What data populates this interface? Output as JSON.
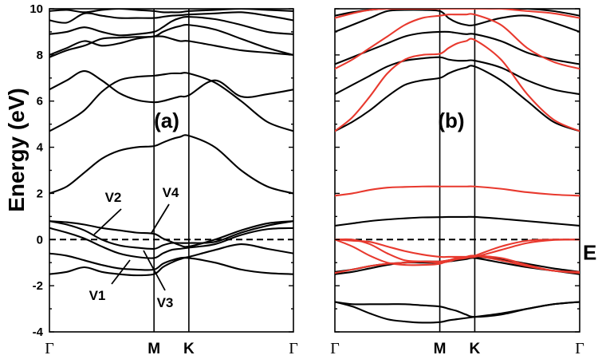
{
  "chart_data": [
    {
      "type": "line",
      "panel_label": "(a)",
      "ylabel": "Energy (eV)",
      "ylim": [
        -4,
        10
      ],
      "yticks": [
        "-4",
        "-2",
        "0",
        "2",
        "4",
        "6",
        "8",
        "10"
      ],
      "xticks": [
        "Γ",
        "M",
        "K",
        "Γ"
      ],
      "x": [
        0,
        0.1667,
        0.3333,
        0.5,
        0.6667,
        0.8333,
        1.0,
        1.0833,
        1.1667,
        1.25,
        1.3333,
        1.5833,
        1.8333,
        2.0833,
        2.3333
      ],
      "fermi_level": 0,
      "annotations": [
        "V1",
        "V2",
        "V3",
        "V4"
      ],
      "series": [
        {
          "color": "#000000",
          "values": [
            -1.5,
            -1.4,
            -1.2,
            -1.4,
            -1.5,
            -1.55,
            -1.5,
            -1.2,
            -1.0,
            -0.85,
            -0.8,
            -1.0,
            -1.3,
            -1.45,
            -1.5
          ]
        },
        {
          "color": "#000000",
          "values": [
            -0.6,
            -0.7,
            -0.9,
            -1.1,
            -1.25,
            -1.3,
            -1.3,
            -1.05,
            -0.9,
            -0.8,
            -0.75,
            -0.45,
            -0.2,
            -0.4,
            -0.6
          ]
        },
        {
          "color": "#000000",
          "values": [
            0.5,
            0.3,
            0.05,
            -0.3,
            -0.6,
            -0.75,
            -0.8,
            -0.6,
            -0.45,
            -0.4,
            -0.35,
            -0.2,
            0.2,
            0.45,
            0.5
          ]
        },
        {
          "color": "#000000",
          "values": [
            0.8,
            0.65,
            0.4,
            0.0,
            -0.25,
            -0.35,
            -0.4,
            -0.25,
            -0.15,
            -0.15,
            -0.15,
            -0.1,
            0.3,
            0.6,
            0.8
          ]
        },
        {
          "color": "#000000",
          "values": [
            0.8,
            0.75,
            0.65,
            0.5,
            0.4,
            0.3,
            0.25,
            0.05,
            -0.1,
            -0.25,
            -0.3,
            0.0,
            0.4,
            0.7,
            0.8
          ]
        },
        {
          "color": "#000000",
          "values": [
            2.0,
            2.3,
            2.9,
            3.5,
            3.85,
            4.0,
            4.05,
            4.2,
            4.35,
            4.45,
            4.5,
            4.0,
            3.0,
            2.3,
            2.0
          ]
        },
        {
          "color": "#000000",
          "values": [
            4.7,
            5.1,
            5.6,
            6.4,
            6.9,
            7.05,
            7.1,
            7.15,
            7.2,
            7.2,
            7.2,
            6.8,
            6.0,
            5.1,
            4.7
          ]
        },
        {
          "color": "#000000",
          "values": [
            6.5,
            6.9,
            7.3,
            6.9,
            6.35,
            6.05,
            5.95,
            6.0,
            6.1,
            6.2,
            6.25,
            6.9,
            6.2,
            6.3,
            6.5
          ]
        },
        {
          "color": "#000000",
          "values": [
            7.9,
            8.2,
            8.4,
            8.7,
            8.75,
            8.78,
            8.8,
            9.0,
            9.15,
            9.25,
            9.3,
            9.1,
            8.7,
            8.3,
            8.0
          ]
        },
        {
          "color": "#000000",
          "values": [
            8.0,
            8.3,
            8.6,
            8.4,
            8.5,
            8.7,
            8.8,
            8.8,
            8.7,
            8.6,
            8.6,
            8.4,
            8.2,
            8.1,
            8.0
          ]
        },
        {
          "color": "#000000",
          "values": [
            8.9,
            9.0,
            9.2,
            9.0,
            8.85,
            8.9,
            9.0,
            9.2,
            9.45,
            9.6,
            9.65,
            9.55,
            9.3,
            9.0,
            8.9
          ]
        },
        {
          "color": "#000000",
          "values": [
            9.5,
            9.4,
            9.8,
            9.7,
            9.6,
            9.6,
            9.6,
            9.65,
            9.7,
            9.72,
            9.75,
            9.8,
            9.85,
            9.7,
            9.5
          ]
        },
        {
          "color": "#000000",
          "values": [
            9.9,
            9.95,
            9.85,
            9.95,
            10.0,
            9.95,
            9.9,
            9.85,
            9.85,
            9.85,
            9.9,
            9.95,
            10.0,
            9.95,
            9.9
          ]
        }
      ]
    },
    {
      "type": "line",
      "panel_label": "(b)",
      "ylim": [
        -4,
        10
      ],
      "xticks": [
        "Γ",
        "M",
        "K",
        "Γ"
      ],
      "x": [
        0,
        0.1667,
        0.3333,
        0.5,
        0.6667,
        0.8333,
        1.0,
        1.0833,
        1.1667,
        1.25,
        1.3333,
        1.5833,
        1.8333,
        2.0833,
        2.3333
      ],
      "fermi_level": 0,
      "fermi_label": "E",
      "series": [
        {
          "color": "#000000",
          "values": [
            -2.7,
            -2.9,
            -3.2,
            -3.45,
            -3.55,
            -3.6,
            -3.58,
            -3.5,
            -3.45,
            -3.4,
            -3.35,
            -3.2,
            -3.0,
            -2.8,
            -2.7
          ]
        },
        {
          "color": "#000000",
          "values": [
            -2.7,
            -2.8,
            -2.8,
            -2.8,
            -2.8,
            -2.85,
            -2.9,
            -3.0,
            -3.1,
            -3.25,
            -3.35,
            -3.25,
            -3.0,
            -2.8,
            -2.7
          ]
        },
        {
          "color": "#000000",
          "values": [
            -1.5,
            -1.4,
            -1.25,
            -1.1,
            -1.0,
            -1.0,
            -1.0,
            -0.95,
            -0.9,
            -0.85,
            -0.8,
            -1.0,
            -1.2,
            -1.35,
            -1.5
          ]
        },
        {
          "color": "#000000",
          "values": [
            -1.4,
            -1.3,
            -1.15,
            -1.05,
            -1.0,
            -0.95,
            -0.95,
            -0.9,
            -0.85,
            -0.8,
            -0.75,
            -0.85,
            -1.05,
            -1.25,
            -1.4
          ]
        },
        {
          "color": "#000000",
          "values": [
            0.6,
            0.7,
            0.8,
            0.87,
            0.92,
            0.96,
            0.97,
            0.98,
            0.98,
            0.98,
            0.98,
            0.9,
            0.8,
            0.7,
            0.6
          ]
        },
        {
          "color": "#000000",
          "values": [
            4.7,
            5.1,
            5.6,
            6.2,
            6.7,
            6.9,
            7.0,
            7.2,
            7.35,
            7.45,
            7.5,
            6.9,
            6.0,
            5.1,
            4.7
          ]
        },
        {
          "color": "#000000",
          "values": [
            6.3,
            6.7,
            7.1,
            7.5,
            7.75,
            7.85,
            7.9,
            7.8,
            7.75,
            7.75,
            7.75,
            7.45,
            6.9,
            6.5,
            6.3
          ]
        },
        {
          "color": "#000000",
          "values": [
            7.6,
            7.9,
            8.2,
            8.5,
            8.8,
            8.95,
            9.0,
            9.0,
            8.95,
            8.9,
            8.9,
            8.6,
            8.1,
            7.8,
            7.6
          ]
        },
        {
          "color": "#000000",
          "values": [
            9.0,
            9.3,
            9.6,
            9.9,
            9.95,
            9.95,
            9.9,
            9.6,
            9.4,
            9.3,
            9.3,
            9.6,
            9.7,
            9.4,
            9.0
          ]
        },
        {
          "color": "#000000",
          "values": [
            9.7,
            9.85,
            9.95,
            10.0,
            10.0,
            10.0,
            10.0,
            10.0,
            10.0,
            10.0,
            10.0,
            10.0,
            10.0,
            9.9,
            9.7
          ]
        },
        {
          "color": "#e8392e",
          "values": [
            -1.45,
            -1.3,
            -1.15,
            -1.05,
            -1.0,
            -0.95,
            -0.95,
            -0.9,
            -0.8,
            -0.75,
            -0.7,
            -0.9,
            -1.15,
            -1.35,
            -1.45
          ]
        },
        {
          "color": "#e8392e",
          "values": [
            0.0,
            -0.3,
            -0.7,
            -1.0,
            -1.1,
            -1.1,
            -1.05,
            -0.9,
            -0.8,
            -0.75,
            -0.7,
            -0.8,
            -1.1,
            -1.35,
            -1.4
          ]
        },
        {
          "color": "#e8392e",
          "values": [
            0.0,
            0.0,
            -0.2,
            -0.6,
            -0.9,
            -0.95,
            -1.0,
            -0.95,
            -0.85,
            -0.8,
            -0.7,
            -0.3,
            -0.05,
            0.0,
            0.0
          ]
        },
        {
          "color": "#e8392e",
          "values": [
            0.0,
            -0.05,
            -0.1,
            -0.3,
            -0.5,
            -0.65,
            -0.75,
            -0.75,
            -0.75,
            -0.75,
            -0.75,
            -0.45,
            -0.15,
            -0.02,
            0.0
          ]
        },
        {
          "color": "#e8392e",
          "values": [
            1.9,
            2.0,
            2.15,
            2.25,
            2.28,
            2.3,
            2.3,
            2.3,
            2.3,
            2.3,
            2.3,
            2.2,
            2.05,
            1.95,
            1.9
          ]
        },
        {
          "color": "#e8392e",
          "values": [
            4.7,
            5.3,
            6.2,
            7.2,
            7.8,
            8.0,
            8.05,
            8.3,
            8.5,
            8.6,
            8.65,
            7.8,
            6.3,
            5.2,
            4.7
          ]
        },
        {
          "color": "#e8392e",
          "values": [
            7.4,
            7.8,
            8.3,
            8.8,
            9.3,
            9.6,
            9.7,
            9.75,
            9.75,
            9.75,
            9.75,
            9.3,
            8.3,
            7.7,
            7.4
          ]
        },
        {
          "color": "#e8392e",
          "values": [
            9.6,
            9.8,
            9.95,
            10.0,
            10.0,
            10.0,
            10.0,
            10.0,
            10.0,
            10.0,
            10.0,
            10.0,
            9.9,
            9.8,
            9.6
          ]
        }
      ]
    }
  ]
}
